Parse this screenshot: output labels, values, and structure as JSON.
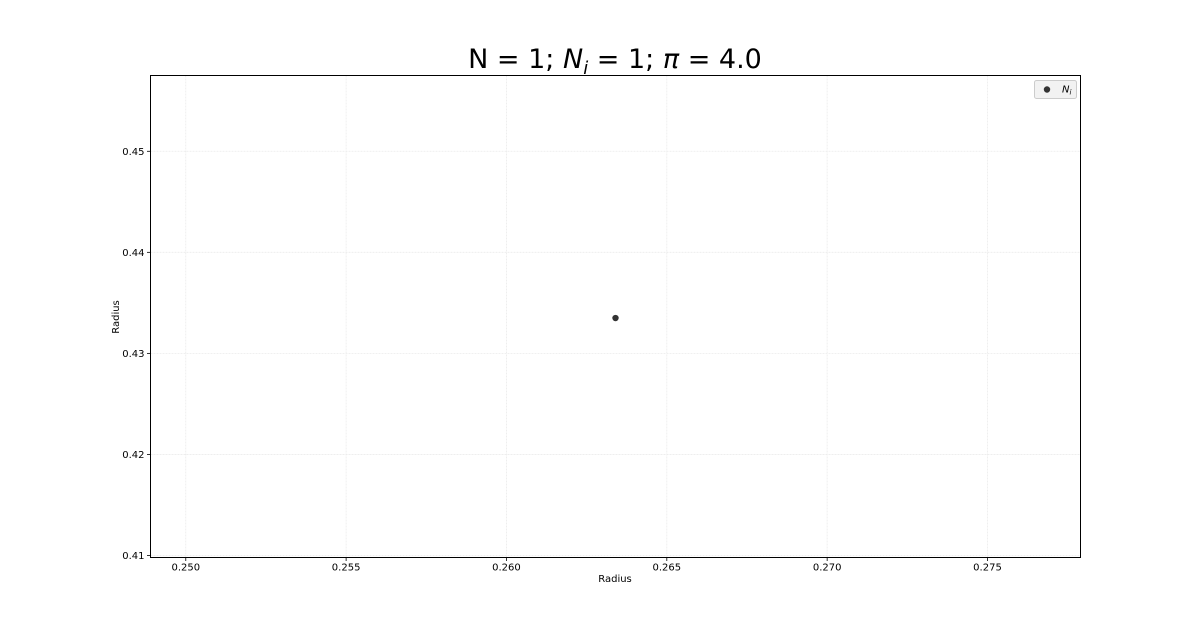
{
  "chart_data": {
    "type": "scatter",
    "title": "N = 1; N_i = 1; π = 4.0",
    "title_parts": {
      "prefix": "N = 1; ",
      "var_main": "N",
      "var_sub": "i",
      "mid": " = 1; ",
      "pi": "π",
      "suffix": " = 4.0"
    },
    "xlabel": "Radius",
    "ylabel": "Radius",
    "xlim": [
      0.2489,
      0.2779
    ],
    "ylim": [
      0.4098,
      0.4575
    ],
    "x_ticks": [
      0.25,
      0.255,
      0.26,
      0.265,
      0.27,
      0.275
    ],
    "x_tick_labels": [
      "0.250",
      "0.255",
      "0.260",
      "0.265",
      "0.270",
      "0.275"
    ],
    "y_ticks": [
      0.41,
      0.42,
      0.43,
      0.44,
      0.45
    ],
    "y_tick_labels": [
      "0.41",
      "0.42",
      "0.43",
      "0.44",
      "0.45"
    ],
    "grid": true,
    "legend_placement": "top-right",
    "series": [
      {
        "name": "N_i",
        "name_parts": {
          "main": "N",
          "sub": "i"
        },
        "color": "#333333",
        "points": [
          {
            "x": 0.2634,
            "y": 0.4335
          }
        ]
      }
    ]
  }
}
